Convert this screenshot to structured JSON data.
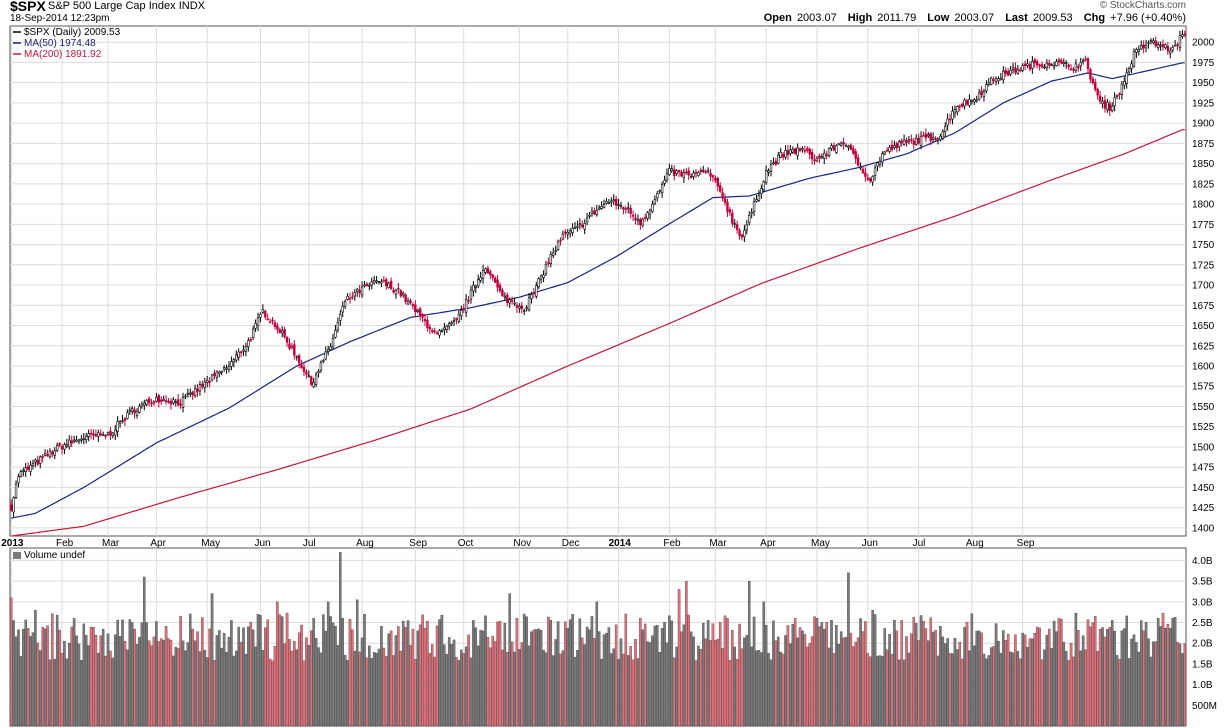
{
  "header": {
    "symbol": "$SPX",
    "name": "S&P 500 Large Cap Index",
    "exchange": "INDX",
    "timestamp": "18-Sep-2014 12:23pm",
    "brand": "© StockCharts.com",
    "quote": [
      {
        "label": "Open",
        "value": "2003.07"
      },
      {
        "label": "High",
        "value": "2011.79"
      },
      {
        "label": "Low",
        "value": "2003.07"
      },
      {
        "label": "Last",
        "value": "2009.53"
      },
      {
        "label": "Chg",
        "value": "+7.96 (+0.40%)"
      }
    ]
  },
  "colors": {
    "up": "#000000",
    "down": "#c1003a",
    "ma50": "#1a237e",
    "ma200": "#c2183c",
    "vol_up": "#7a7a7a",
    "vol_down": "#e0707a",
    "grid": "#dcdcdc"
  },
  "chart_data": [
    {
      "type": "candlestick",
      "legend": [
        {
          "label": "$SPX (Daily) 2009.53",
          "color": "#000000"
        },
        {
          "label": "MA(50) 1974.48",
          "color": "#1a237e"
        },
        {
          "label": "MA(200) 1891.92",
          "color": "#c2183c"
        }
      ],
      "ylim": [
        1390,
        2020
      ],
      "yticks": [
        1400,
        1425,
        1450,
        1475,
        1500,
        1525,
        1550,
        1575,
        1600,
        1625,
        1650,
        1675,
        1700,
        1725,
        1750,
        1775,
        1800,
        1825,
        1850,
        1875,
        1900,
        1925,
        1950,
        1975,
        2000
      ],
      "x_labels": [
        "2013",
        "Feb",
        "Mar",
        "Apr",
        "May",
        "Jun",
        "Jul",
        "Aug",
        "Sep",
        "Oct",
        "Nov",
        "Dec",
        "2014",
        "Feb",
        "Mar",
        "Apr",
        "May",
        "Jun",
        "Jul",
        "Aug",
        "Sep"
      ],
      "close_anchors": [
        [
          0,
          1426
        ],
        [
          3,
          1465
        ],
        [
          10,
          1480
        ],
        [
          20,
          1500
        ],
        [
          30,
          1512
        ],
        [
          40,
          1515
        ],
        [
          50,
          1545
        ],
        [
          60,
          1560
        ],
        [
          70,
          1555
        ],
        [
          80,
          1578
        ],
        [
          90,
          1600
        ],
        [
          98,
          1630
        ],
        [
          104,
          1668
        ],
        [
          110,
          1648
        ],
        [
          118,
          1612
        ],
        [
          124,
          1578
        ],
        [
          132,
          1625
        ],
        [
          138,
          1680
        ],
        [
          145,
          1695
        ],
        [
          152,
          1705
        ],
        [
          160,
          1693
        ],
        [
          168,
          1665
        ],
        [
          176,
          1638
        ],
        [
          184,
          1655
        ],
        [
          190,
          1690
        ],
        [
          196,
          1724
        ],
        [
          203,
          1685
        ],
        [
          212,
          1672
        ],
        [
          216,
          1690
        ],
        [
          222,
          1730
        ],
        [
          228,
          1760
        ],
        [
          234,
          1770
        ],
        [
          240,
          1788
        ],
        [
          247,
          1804
        ],
        [
          254,
          1795
        ],
        [
          260,
          1778
        ],
        [
          266,
          1805
        ],
        [
          272,
          1840
        ],
        [
          280,
          1835
        ],
        [
          288,
          1840
        ],
        [
          294,
          1810
        ],
        [
          298,
          1780
        ],
        [
          302,
          1760
        ],
        [
          306,
          1790
        ],
        [
          312,
          1840
        ],
        [
          318,
          1860
        ],
        [
          326,
          1868
        ],
        [
          333,
          1855
        ],
        [
          339,
          1868
        ],
        [
          344,
          1878
        ],
        [
          350,
          1850
        ],
        [
          355,
          1830
        ],
        [
          360,
          1862
        ],
        [
          368,
          1875
        ],
        [
          376,
          1880
        ],
        [
          384,
          1885
        ],
        [
          390,
          1920
        ],
        [
          398,
          1930
        ],
        [
          406,
          1955
        ],
        [
          414,
          1965
        ],
        [
          422,
          1972
        ],
        [
          430,
          1975
        ],
        [
          438,
          1970
        ],
        [
          444,
          1975
        ],
        [
          450,
          1925
        ],
        [
          454,
          1920
        ],
        [
          459,
          1945
        ],
        [
          464,
          1985
        ],
        [
          470,
          2000
        ],
        [
          476,
          1995
        ],
        [
          480,
          1990
        ],
        [
          484,
          2009.53
        ]
      ],
      "ma50_anchors": [
        [
          0,
          1412
        ],
        [
          10,
          1418
        ],
        [
          30,
          1450
        ],
        [
          60,
          1505
        ],
        [
          90,
          1548
        ],
        [
          118,
          1600
        ],
        [
          140,
          1630
        ],
        [
          165,
          1660
        ],
        [
          190,
          1672
        ],
        [
          210,
          1685
        ],
        [
          230,
          1703
        ],
        [
          250,
          1735
        ],
        [
          270,
          1772
        ],
        [
          290,
          1808
        ],
        [
          305,
          1810
        ],
        [
          330,
          1832
        ],
        [
          350,
          1845
        ],
        [
          370,
          1862
        ],
        [
          390,
          1888
        ],
        [
          410,
          1925
        ],
        [
          430,
          1952
        ],
        [
          445,
          1962
        ],
        [
          455,
          1955
        ],
        [
          470,
          1965
        ],
        [
          484,
          1974.48
        ]
      ],
      "ma200_anchors": [
        [
          0,
          1390
        ],
        [
          30,
          1402
        ],
        [
          70,
          1438
        ],
        [
          110,
          1472
        ],
        [
          150,
          1508
        ],
        [
          190,
          1547
        ],
        [
          230,
          1600
        ],
        [
          270,
          1650
        ],
        [
          310,
          1702
        ],
        [
          350,
          1745
        ],
        [
          390,
          1785
        ],
        [
          430,
          1830
        ],
        [
          460,
          1862
        ],
        [
          484,
          1891.92
        ]
      ]
    },
    {
      "type": "bar",
      "legend": [
        {
          "label": "Volume undef",
          "color": "#000000"
        }
      ],
      "ylim": [
        0,
        4300000000
      ],
      "ytick_labels": [
        "500M",
        "1.0B",
        "1.5B",
        "2.0B",
        "2.5B",
        "3.0B",
        "3.5B",
        "4.0B"
      ],
      "ytick_values": [
        500000000,
        1000000000,
        1500000000,
        2000000000,
        2500000000,
        3000000000,
        3500000000,
        4000000000
      ],
      "base_volume": 2100000000,
      "spikes": [
        [
          0,
          3100000000
        ],
        [
          10,
          2800000000
        ],
        [
          55,
          3600000000
        ],
        [
          83,
          3200000000
        ],
        [
          102,
          2700000000
        ],
        [
          110,
          3000000000
        ],
        [
          131,
          3000000000
        ],
        [
          136,
          4200000000
        ],
        [
          143,
          3050000000
        ],
        [
          168,
          2300000000
        ],
        [
          206,
          3200000000
        ],
        [
          232,
          2700000000
        ],
        [
          242,
          3000000000
        ],
        [
          276,
          3300000000
        ],
        [
          279,
          3500000000
        ],
        [
          305,
          3500000000
        ],
        [
          311,
          3000000000
        ],
        [
          346,
          3700000000
        ],
        [
          356,
          2800000000
        ],
        [
          448,
          2650000000
        ]
      ]
    }
  ]
}
